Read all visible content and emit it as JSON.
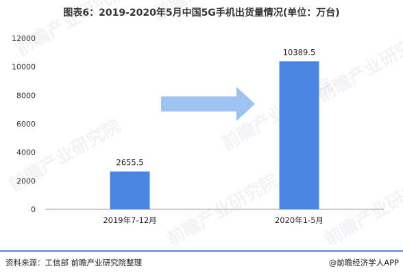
{
  "title": "图表6：2019-2020年5月中国5G手机出货量情况(单位：万台)",
  "footer": {
    "source": "资料来源：工信部 前瞻产业研究院整理",
    "credit": "@前瞻经济学人APP"
  },
  "watermark_text": "前瞻产业研究院",
  "colors": {
    "bar": "#4a86e0",
    "arrow": "#9ec3f2",
    "axis": "#999999",
    "footer_line": "#4a8fd6"
  },
  "chart_data": {
    "type": "bar",
    "title": "图表6：2019-2020年5月中国5G手机出货量情况(单位：万台)",
    "xlabel": "",
    "ylabel": "",
    "categories": [
      "2019年7-12月",
      "2020年1-5月"
    ],
    "series": [
      {
        "values": [
          2655.5,
          10389.5
        ]
      }
    ],
    "data_labels": [
      "2655.5",
      "10389.5"
    ],
    "ylim": [
      0,
      12000
    ],
    "yticks": [
      0,
      2000,
      4000,
      6000,
      8000,
      10000,
      12000
    ],
    "grid": false,
    "annotation": "right-arrow"
  }
}
